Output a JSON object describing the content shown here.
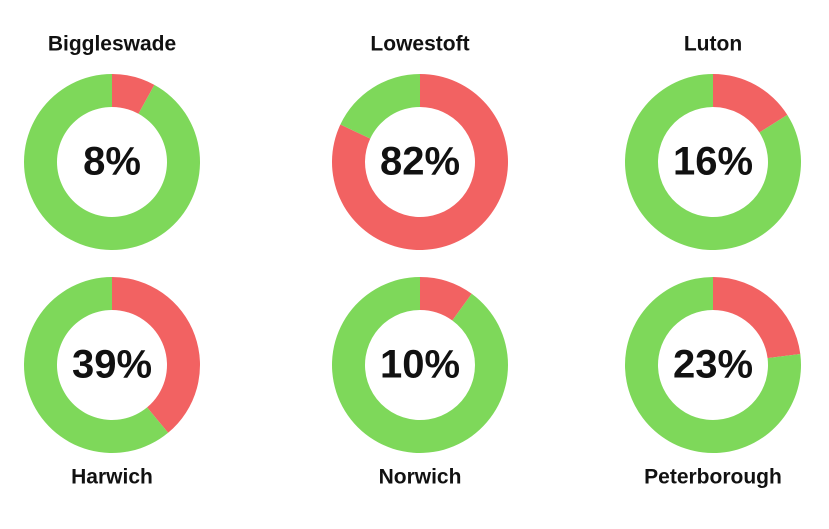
{
  "chart_data": [
    {
      "type": "donut",
      "title": "Biggleswade",
      "values": [
        8,
        92
      ],
      "value_labels": [
        "8%",
        null
      ],
      "colors": [
        "#f26262",
        "#7ed85a"
      ]
    },
    {
      "type": "donut",
      "title": "Lowestoft",
      "values": [
        82,
        18
      ],
      "value_labels": [
        "82%",
        null
      ],
      "colors": [
        "#f26262",
        "#7ed85a"
      ]
    },
    {
      "type": "donut",
      "title": "Luton",
      "values": [
        16,
        84
      ],
      "value_labels": [
        "16%",
        null
      ],
      "colors": [
        "#f26262",
        "#7ed85a"
      ]
    },
    {
      "type": "donut",
      "title": "Harwich",
      "values": [
        39,
        61
      ],
      "value_labels": [
        "39%",
        null
      ],
      "colors": [
        "#f26262",
        "#7ed85a"
      ]
    },
    {
      "type": "donut",
      "title": "Norwich",
      "values": [
        10,
        90
      ],
      "value_labels": [
        "10%",
        null
      ],
      "colors": [
        "#f26262",
        "#7ed85a"
      ]
    },
    {
      "type": "donut",
      "title": "Peterborough",
      "values": [
        23,
        77
      ],
      "value_labels": [
        "23%",
        null
      ],
      "colors": [
        "#f26262",
        "#7ed85a"
      ]
    }
  ]
}
